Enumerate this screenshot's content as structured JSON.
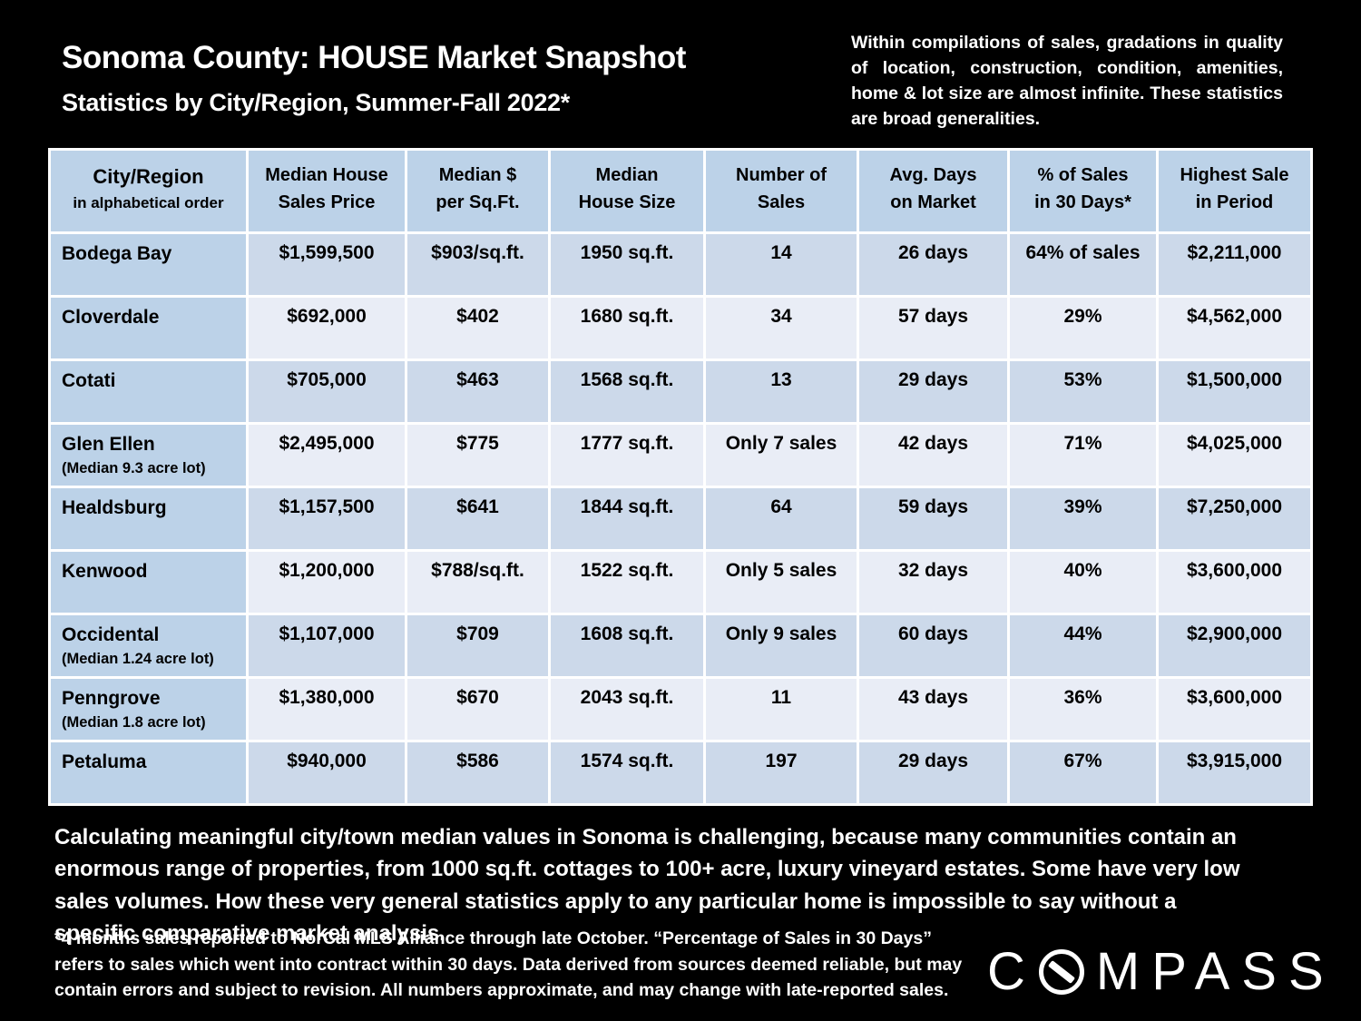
{
  "header": {
    "title": "Sonoma County: HOUSE Market Snapshot",
    "subtitle": "Statistics by City/Region, Summer-Fall 2022*",
    "disclaimer": "Within compilations of sales, gradations in quality of location, construction, condition, amenities,  home & lot size are almost infinite. These statistics are broad generalities."
  },
  "table": {
    "columns": [
      {
        "line1": "City/Region",
        "line2": "in alphabetical order"
      },
      {
        "line1": "Median House",
        "line2": "Sales Price"
      },
      {
        "line1": "Median $",
        "line2": "per Sq.Ft."
      },
      {
        "line1": "Median",
        "line2": "House Size"
      },
      {
        "line1": "Number of",
        "line2": "Sales"
      },
      {
        "line1": "Avg. Days",
        "line2": "on Market"
      },
      {
        "line1": "% of Sales",
        "line2": "in 30 Days*"
      },
      {
        "line1": "Highest Sale",
        "line2": "in Period"
      }
    ],
    "rows": [
      {
        "city": "Bodega Bay",
        "note": "",
        "price": "$1,599,500",
        "ppsf": "$903/sq.ft.",
        "size": "1950 sq.ft.",
        "sales": "14",
        "days": "26 days",
        "pct": "64% of sales",
        "high": "$2,211,000"
      },
      {
        "city": "Cloverdale",
        "note": "",
        "price": "$692,000",
        "ppsf": "$402",
        "size": "1680 sq.ft.",
        "sales": "34",
        "days": "57 days",
        "pct": "29%",
        "high": "$4,562,000"
      },
      {
        "city": "Cotati",
        "note": "",
        "price": "$705,000",
        "ppsf": "$463",
        "size": "1568 sq.ft.",
        "sales": "13",
        "days": "29 days",
        "pct": "53%",
        "high": "$1,500,000"
      },
      {
        "city": "Glen Ellen",
        "note": "(Median 9.3 acre lot)",
        "price": "$2,495,000",
        "ppsf": "$775",
        "size": "1777 sq.ft.",
        "sales": "Only 7 sales",
        "days": "42 days",
        "pct": "71%",
        "high": "$4,025,000"
      },
      {
        "city": "Healdsburg",
        "note": "",
        "price": "$1,157,500",
        "ppsf": "$641",
        "size": "1844 sq.ft.",
        "sales": "64",
        "days": "59 days",
        "pct": "39%",
        "high": "$7,250,000"
      },
      {
        "city": "Kenwood",
        "note": "",
        "price": "$1,200,000",
        "ppsf": "$788/sq.ft.",
        "size": "1522 sq.ft.",
        "sales": "Only 5 sales",
        "days": "32 days",
        "pct": "40%",
        "high": "$3,600,000"
      },
      {
        "city": "Occidental",
        "note": "(Median 1.24 acre lot)",
        "price": "$1,107,000",
        "ppsf": "$709",
        "size": "1608 sq.ft.",
        "sales": "Only 9 sales",
        "days": "60 days",
        "pct": "44%",
        "high": "$2,900,000"
      },
      {
        "city": "Penngrove",
        "note": "(Median 1.8 acre lot)",
        "price": "$1,380,000",
        "ppsf": "$670",
        "size": "2043 sq.ft.",
        "sales": "11",
        "days": "43 days",
        "pct": "36%",
        "high": "$3,600,000"
      },
      {
        "city": "Petaluma",
        "note": "",
        "price": "$940,000",
        "ppsf": "$586",
        "size": "1574 sq.ft.",
        "sales": "197",
        "days": "29 days",
        "pct": "67%",
        "high": "$3,915,000"
      }
    ]
  },
  "footer": {
    "paragraph": "Calculating meaningful city/town median values in Sonoma is challenging, because many communities contain an enormous range of properties, from 1000 sq.ft. cottages to 100+ acre, luxury vineyard estates. Some have very low sales volumes. How these very general statistics apply to any particular home is impossible to say without a specific comparative market analysis.",
    "footnote": "*4 months sales reported to NorCal MLS Alliance through late October. “Percentage of Sales in 30 Days” refers to sales which went into contract within 30 days. Data derived from sources deemed reliable, but may contain errors and subject to revision. All numbers approximate, and may change with late-reported sales.",
    "logo_prefix": "C",
    "logo_suffix": "MPASS"
  },
  "colors": {
    "background": "#000000",
    "header_blue": "#bcd2e8",
    "band_dark": "#ccd9ea",
    "band_light": "#e9edf6",
    "text_on_table": "#000000",
    "text_on_slide": "#ffffff"
  }
}
